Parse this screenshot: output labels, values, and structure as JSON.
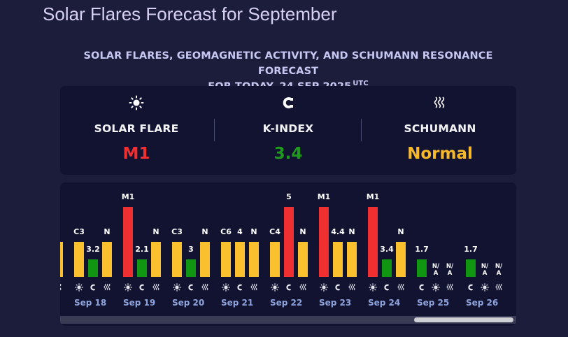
{
  "page_title": "Solar Flares Forecast for September",
  "subtitle": {
    "line1": "SOLAR FLARES, GEOMAGNETIC ACTIVITY, AND SCHUMANN RESONANCE FORECAST",
    "line2": "FOR TODAY, 24 SEP 2025",
    "utc": "UTC"
  },
  "summary": {
    "solar_flare": {
      "icon": "sun-icon",
      "label": "SOLAR FLARE",
      "value": "M1",
      "color": "#f03030"
    },
    "k_index": {
      "icon": "magnet-icon",
      "label": "K-INDEX",
      "value": "3.4",
      "color": "#1f9a1f"
    },
    "schumann": {
      "icon": "waves-icon",
      "label": "SCHUMANN",
      "value": "Normal",
      "color": "#f7b92a"
    }
  },
  "colors": {
    "red": "#f03030",
    "yellow": "#fbc02d",
    "green": "#119611"
  },
  "chart_data": {
    "type": "bar",
    "series_kinds": [
      "solar-flare",
      "k-index",
      "schumann"
    ],
    "partial_day": [
      {
        "kind": "schumann",
        "label": "",
        "color": "yellow"
      }
    ],
    "days": [
      {
        "label": "Sep 18",
        "bars": [
          {
            "kind": "solar-flare",
            "label": "C3",
            "color": "yellow",
            "level": 0.5
          },
          {
            "kind": "k-index",
            "label": "3.2",
            "color": "green",
            "level": 0.25
          },
          {
            "kind": "schumann",
            "label": "N",
            "color": "yellow",
            "level": 0.5
          }
        ]
      },
      {
        "label": "Sep 19",
        "bars": [
          {
            "kind": "solar-flare",
            "label": "M1",
            "color": "red",
            "level": 1.0
          },
          {
            "kind": "k-index",
            "label": "2.1",
            "color": "green",
            "level": 0.25
          },
          {
            "kind": "schumann",
            "label": "N",
            "color": "yellow",
            "level": 0.5
          }
        ]
      },
      {
        "label": "Sep 20",
        "bars": [
          {
            "kind": "solar-flare",
            "label": "C3",
            "color": "yellow",
            "level": 0.5
          },
          {
            "kind": "k-index",
            "label": "3",
            "color": "green",
            "level": 0.25
          },
          {
            "kind": "schumann",
            "label": "N",
            "color": "yellow",
            "level": 0.5
          }
        ]
      },
      {
        "label": "Sep 21",
        "bars": [
          {
            "kind": "solar-flare",
            "label": "C6",
            "color": "yellow",
            "level": 0.5
          },
          {
            "kind": "k-index",
            "label": "4",
            "color": "yellow",
            "level": 0.5
          },
          {
            "kind": "schumann",
            "label": "N",
            "color": "yellow",
            "level": 0.5
          }
        ]
      },
      {
        "label": "Sep 22",
        "bars": [
          {
            "kind": "solar-flare",
            "label": "C4",
            "color": "yellow",
            "level": 0.5
          },
          {
            "kind": "k-index",
            "label": "5",
            "color": "red",
            "level": 1.0
          },
          {
            "kind": "schumann",
            "label": "N",
            "color": "yellow",
            "level": 0.5
          }
        ]
      },
      {
        "label": "Sep 23",
        "bars": [
          {
            "kind": "solar-flare",
            "label": "M1",
            "color": "red",
            "level": 1.0
          },
          {
            "kind": "k-index",
            "label": "4.4",
            "color": "yellow",
            "level": 0.5
          },
          {
            "kind": "schumann",
            "label": "N",
            "color": "yellow",
            "level": 0.5
          }
        ]
      },
      {
        "label": "Sep 24",
        "bars": [
          {
            "kind": "solar-flare",
            "label": "M1",
            "color": "red",
            "level": 1.0
          },
          {
            "kind": "k-index",
            "label": "3.4",
            "color": "green",
            "level": 0.25
          },
          {
            "kind": "schumann",
            "label": "N",
            "color": "yellow",
            "level": 0.5
          }
        ]
      },
      {
        "label": "Sep 25",
        "bars": [
          {
            "kind": "k-index",
            "label": "1.7",
            "color": "green",
            "level": 0.25
          },
          {
            "kind": "solar-flare",
            "label": "N/A",
            "color": "",
            "level": 0
          },
          {
            "kind": "schumann",
            "label": "N/A",
            "color": "",
            "level": 0
          }
        ]
      },
      {
        "label": "Sep 26",
        "bars": [
          {
            "kind": "k-index",
            "label": "1.7",
            "color": "green",
            "level": 0.25
          },
          {
            "kind": "solar-flare",
            "label": "N/A",
            "color": "",
            "level": 0
          },
          {
            "kind": "schumann",
            "label": "N/A",
            "color": "",
            "level": 0
          }
        ]
      }
    ]
  }
}
